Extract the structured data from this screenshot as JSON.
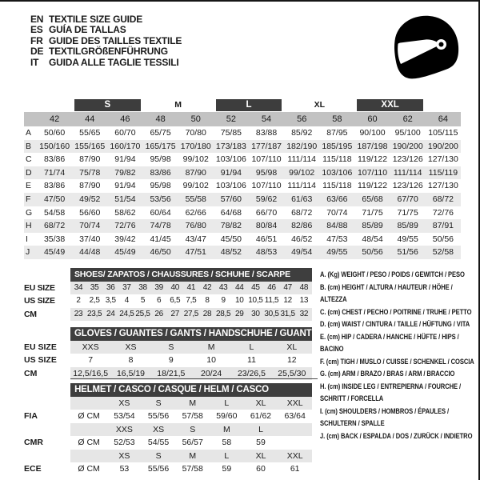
{
  "header": {
    "languages": [
      {
        "code": "EN",
        "text": "TEXTILE SIZE GUIDE"
      },
      {
        "code": "ES",
        "text": "GUÍA DE TALLAS"
      },
      {
        "code": "FR",
        "text": "GUIDE DES TAILLES TEXTILE"
      },
      {
        "code": "DE",
        "text": "TEXTILGRÖßENFÜHRUNG"
      },
      {
        "code": "IT",
        "text": "GUIDA ALLE TAGLIE TESSILI"
      }
    ],
    "logo": "racing-helmet-icon"
  },
  "textile_table": {
    "groups": [
      {
        "label": "S",
        "variant": "dark",
        "span": 2
      },
      {
        "label": "M",
        "variant": "plain",
        "span": 2
      },
      {
        "label": "L",
        "variant": "dark",
        "span": 2
      },
      {
        "label": "XL",
        "variant": "plain",
        "span": 2
      },
      {
        "label": "XXL",
        "variant": "dark",
        "span": 2
      }
    ],
    "sizes": [
      "42",
      "44",
      "46",
      "48",
      "50",
      "52",
      "54",
      "56",
      "58",
      "60",
      "62",
      "64"
    ],
    "rows": [
      {
        "label": "A",
        "values": [
          "50/60",
          "55/65",
          "60/70",
          "65/75",
          "70/80",
          "75/85",
          "83/88",
          "85/92",
          "87/95",
          "90/100",
          "95/100",
          "105/115"
        ]
      },
      {
        "label": "B",
        "values": [
          "150/160",
          "155/165",
          "160/170",
          "165/175",
          "170/180",
          "173/183",
          "177/187",
          "182/190",
          "185/195",
          "187/198",
          "190/200",
          "190/200"
        ]
      },
      {
        "label": "C",
        "values": [
          "83/86",
          "87/90",
          "91/94",
          "95/98",
          "99/102",
          "103/106",
          "107/110",
          "111/114",
          "115/118",
          "119/122",
          "123/126",
          "127/130"
        ]
      },
      {
        "label": "D",
        "values": [
          "71/74",
          "75/78",
          "79/82",
          "83/86",
          "87/90",
          "91/94",
          "95/98",
          "99/102",
          "103/106",
          "107/110",
          "111/114",
          "115/119"
        ]
      },
      {
        "label": "E",
        "values": [
          "83/86",
          "87/90",
          "91/94",
          "95/98",
          "99/102",
          "103/106",
          "107/110",
          "111/114",
          "115/118",
          "119/122",
          "123/126",
          "127/130"
        ]
      },
      {
        "label": "F",
        "values": [
          "47/50",
          "49/52",
          "51/54",
          "53/56",
          "55/58",
          "57/60",
          "59/62",
          "61/63",
          "63/66",
          "65/68",
          "67/70",
          "68/72"
        ]
      },
      {
        "label": "G",
        "values": [
          "54/58",
          "56/60",
          "58/62",
          "60/64",
          "62/66",
          "64/68",
          "66/70",
          "68/72",
          "70/74",
          "71/75",
          "71/75",
          "72/76"
        ]
      },
      {
        "label": "H",
        "values": [
          "68/72",
          "70/74",
          "72/76",
          "74/78",
          "76/80",
          "78/82",
          "80/84",
          "82/86",
          "84/88",
          "85/89",
          "85/89",
          "87/91"
        ]
      },
      {
        "label": "I",
        "values": [
          "35/38",
          "37/40",
          "39/42",
          "41/45",
          "43/47",
          "45/50",
          "46/51",
          "46/52",
          "47/53",
          "48/54",
          "49/55",
          "50/56"
        ]
      },
      {
        "label": "J",
        "values": [
          "45/49",
          "44/48",
          "45/49",
          "46/50",
          "47/51",
          "48/52",
          "48/53",
          "49/54",
          "49/55",
          "50/56",
          "51/56",
          "52/58"
        ]
      }
    ]
  },
  "shoes_table": {
    "title": "SHOES/ ZAPATOS / CHAUSSURES / SCHUHE / SCARPE",
    "rows": [
      {
        "label": "EU SIZE",
        "striped": true,
        "values": [
          "34",
          "35",
          "36",
          "37",
          "38",
          "39",
          "40",
          "41",
          "42",
          "43",
          "44",
          "45",
          "46",
          "47",
          "48"
        ]
      },
      {
        "label": "US SIZE",
        "striped": false,
        "values": [
          "2",
          "2,5",
          "3,5",
          "4",
          "5",
          "6",
          "6,5",
          "7,5",
          "8",
          "9",
          "10",
          "10,5",
          "11,5",
          "12",
          "13"
        ]
      },
      {
        "label": "CM",
        "striped": true,
        "values": [
          "23",
          "23,5",
          "24",
          "24,5",
          "25,5",
          "26",
          "27",
          "27,5",
          "28",
          "28,5",
          "29",
          "30",
          "30,5",
          "31,5",
          "32"
        ]
      }
    ]
  },
  "gloves_table": {
    "title": "GLOVES / GUANTES / GANTS / HANDSCHUHE / GUANTI",
    "rows": [
      {
        "label": "EU SIZE",
        "striped": true,
        "values": [
          "XXS",
          "XS",
          "S",
          "M",
          "L",
          "XL"
        ]
      },
      {
        "label": "US SIZE",
        "striped": false,
        "values": [
          "7",
          "8",
          "9",
          "10",
          "11",
          "12"
        ]
      },
      {
        "label": "CM",
        "striped": true,
        "values": [
          "12,5/16,5",
          "16,5/19",
          "18/21,5",
          "20/24",
          "23/26,5",
          "25,5/30"
        ]
      }
    ]
  },
  "helmet_table": {
    "title": "HELMET / CASCO / CASQUE / HELM / CASCO",
    "sections": [
      {
        "label": "FIA",
        "prefix": "Ø CM",
        "sizes": [
          "XS",
          "S",
          "M",
          "L",
          "XL",
          "XXL"
        ],
        "values": [
          "53/54",
          "55/56",
          "57/58",
          "59/60",
          "61/62",
          "63/64"
        ]
      },
      {
        "label": "CMR",
        "prefix": "Ø CM",
        "sizes": [
          "XXS",
          "XS",
          "S",
          "M",
          "L",
          ""
        ],
        "values": [
          "52/53",
          "54/55",
          "56/57",
          "58",
          "59",
          ""
        ]
      },
      {
        "label": "ECE",
        "prefix": "Ø CM",
        "sizes": [
          "XS",
          "S",
          "M",
          "L",
          "XL",
          "XXL"
        ],
        "values": [
          "53",
          "55/56",
          "57/58",
          "59",
          "60",
          "61"
        ]
      }
    ]
  },
  "legend": {
    "items": [
      "A. (Kg) WEIGHT / PESO / POIDS / GEWITCH / PESO",
      "B. (cm) HEIGHT / ALTURA / HAUTEUR / HÖHE / ALTEZZA",
      "C. (cm) CHEST / PECHO / POITRINE / TRUHE / PETTO",
      "D. (cm) WAIST / CINTURA / TAILLE / HÜFTUNG / VITA",
      "E. (cm) HIP / CADERA / HANCHE / HÜFTE / HIPS / BACINO",
      "F. (cm) TIGH / MUSLO / CUISSE / SCHENKEL / COSCIA",
      "G. (cm) ARM / BRAZO / BRAS / ARM / BRACCIO",
      "H. (cm) INSIDE LEG / ENTREPIERNA / FOURCHE / SCHRITT / FORCELLA",
      "I. (cm) SHOULDERS / HOMBROS / ÉPAULES / SCHULTERN / SPALLE",
      "J. (cm) BACK / ESPALDA / DOS / ZURÜCK / INDIETRO"
    ]
  },
  "colors": {
    "dark_bar": "#3d3d3d",
    "size_bar": "#c2c2c2",
    "stripe": "#e8e8e8",
    "text": "#1a1a1a"
  }
}
